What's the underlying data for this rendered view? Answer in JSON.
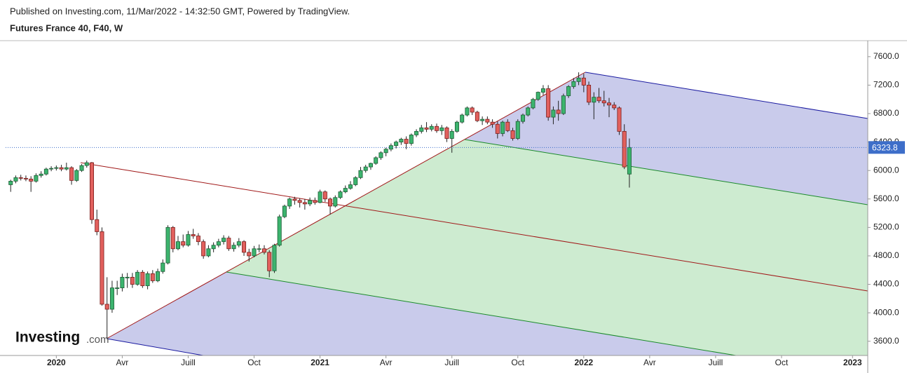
{
  "chart_data": {
    "type": "candlestick",
    "published": "Published on Investing.com, 11/Mar/2022 - 14:32:50 GMT, Powered by TradingView.",
    "title": "Futures France 40, F40, W",
    "logo": "Investing",
    "logo_suffix": ".com",
    "up_color": "#3cb46e",
    "down_color": "#e2605d",
    "last_price": 6323.8,
    "xlim": [
      -10,
      160
    ],
    "ylim": [
      3400,
      7825
    ],
    "xticks": [
      {
        "value": 0,
        "label": "2020"
      },
      {
        "value": 13,
        "label": "Avr"
      },
      {
        "value": 26,
        "label": "Juill"
      },
      {
        "value": 39,
        "label": "Oct"
      },
      {
        "value": 52,
        "label": "2021"
      },
      {
        "value": 65,
        "label": "Avr"
      },
      {
        "value": 78,
        "label": "Juill"
      },
      {
        "value": 91,
        "label": "Oct"
      },
      {
        "value": 104,
        "label": "2022"
      },
      {
        "value": 117,
        "label": "Avr"
      },
      {
        "value": 130,
        "label": "Juill"
      },
      {
        "value": 143,
        "label": "Oct"
      },
      {
        "value": 157,
        "label": "2023"
      }
    ],
    "yticks": [
      {
        "value": 3600,
        "label": "3600.0"
      },
      {
        "value": 4000,
        "label": "4000.0"
      },
      {
        "value": 4400,
        "label": "4400.0"
      },
      {
        "value": 4800,
        "label": "4800.0"
      },
      {
        "value": 5200,
        "label": "5200.0"
      },
      {
        "value": 5600,
        "label": "5600.0"
      },
      {
        "value": 6000,
        "label": "6000.0"
      },
      {
        "value": 6400,
        "label": "6400.0"
      },
      {
        "value": 6800,
        "label": "6800.0"
      },
      {
        "value": 7200,
        "label": "7200.0"
      },
      {
        "value": 7600,
        "label": "7600.0"
      }
    ],
    "x": [
      -9,
      -8,
      -7,
      -6,
      -5,
      -4,
      -3,
      -2,
      -1,
      0,
      1,
      2,
      3,
      4,
      5,
      6,
      7,
      8,
      9,
      10,
      11,
      12,
      13,
      14,
      15,
      16,
      17,
      18,
      19,
      20,
      21,
      22,
      23,
      24,
      25,
      26,
      27,
      28,
      29,
      30,
      31,
      32,
      33,
      34,
      35,
      36,
      37,
      38,
      39,
      40,
      41,
      42,
      43,
      44,
      45,
      46,
      47,
      48,
      49,
      50,
      51,
      52,
      53,
      54,
      55,
      56,
      57,
      58,
      59,
      60,
      61,
      62,
      63,
      64,
      65,
      66,
      67,
      68,
      69,
      70,
      71,
      72,
      73,
      74,
      75,
      76,
      77,
      78,
      79,
      80,
      81,
      82,
      83,
      84,
      85,
      86,
      87,
      88,
      89,
      90,
      91,
      92,
      93,
      94,
      95,
      96,
      97,
      98,
      99,
      100,
      101,
      102,
      103,
      104,
      105,
      106,
      107,
      108,
      109,
      110,
      111,
      112,
      113
    ],
    "ohlc": [
      [
        5800,
        5870,
        5700,
        5850
      ],
      [
        5850,
        5930,
        5820,
        5900
      ],
      [
        5900,
        5940,
        5860,
        5890
      ],
      [
        5890,
        5930,
        5850,
        5880
      ],
      [
        5880,
        5920,
        5700,
        5850
      ],
      [
        5850,
        5960,
        5830,
        5930
      ],
      [
        5930,
        5990,
        5900,
        5950
      ],
      [
        5950,
        6040,
        5930,
        6020
      ],
      [
        6020,
        6060,
        5990,
        6030
      ],
      [
        6030,
        6070,
        6000,
        6040
      ],
      [
        6040,
        6080,
        5990,
        6020
      ],
      [
        6020,
        6110,
        6000,
        6040
      ],
      [
        6040,
        6060,
        5800,
        5860
      ],
      [
        5860,
        6020,
        5840,
        6000
      ],
      [
        6000,
        6090,
        5980,
        6070
      ],
      [
        6070,
        6140,
        6040,
        6110
      ],
      [
        6110,
        6120,
        5250,
        5310
      ],
      [
        5310,
        5450,
        5090,
        5140
      ],
      [
        5140,
        5200,
        4100,
        4120
      ],
      [
        4120,
        4500,
        3630,
        4050
      ],
      [
        4050,
        4450,
        4000,
        4350
      ],
      [
        4350,
        4450,
        4250,
        4350
      ],
      [
        4350,
        4550,
        4300,
        4500
      ],
      [
        4500,
        4560,
        4350,
        4500
      ],
      [
        4500,
        4560,
        4350,
        4400
      ],
      [
        4400,
        4600,
        4380,
        4570
      ],
      [
        4570,
        4600,
        4350,
        4380
      ],
      [
        4380,
        4580,
        4330,
        4550
      ],
      [
        4550,
        4600,
        4420,
        4450
      ],
      [
        4450,
        4620,
        4430,
        4580
      ],
      [
        4580,
        4750,
        4550,
        4700
      ],
      [
        4700,
        5230,
        4680,
        5200
      ],
      [
        5200,
        5220,
        4850,
        4900
      ],
      [
        4900,
        5080,
        4880,
        5000
      ],
      [
        5000,
        5100,
        4920,
        4950
      ],
      [
        4950,
        5150,
        4930,
        5100
      ],
      [
        5100,
        5180,
        5040,
        5080
      ],
      [
        5080,
        5120,
        4950,
        5000
      ],
      [
        5000,
        5030,
        4760,
        4800
      ],
      [
        4800,
        4950,
        4780,
        4900
      ],
      [
        4900,
        4990,
        4850,
        4950
      ],
      [
        4950,
        5040,
        4920,
        5000
      ],
      [
        5000,
        5090,
        4960,
        5050
      ],
      [
        5050,
        5080,
        4870,
        4900
      ],
      [
        4900,
        4990,
        4860,
        4950
      ],
      [
        4950,
        5050,
        4920,
        5000
      ],
      [
        5000,
        5020,
        4800,
        4850
      ],
      [
        4850,
        4900,
        4720,
        4800
      ],
      [
        4800,
        4940,
        4780,
        4900
      ],
      [
        4900,
        4960,
        4850,
        4900
      ],
      [
        4900,
        4950,
        4820,
        4850
      ],
      [
        4850,
        4880,
        4500,
        4590
      ],
      [
        4590,
        4970,
        4560,
        4950
      ],
      [
        4950,
        5380,
        4930,
        5350
      ],
      [
        5350,
        5520,
        5330,
        5500
      ],
      [
        5500,
        5620,
        5460,
        5600
      ],
      [
        5600,
        5630,
        5520,
        5580
      ],
      [
        5580,
        5610,
        5480,
        5550
      ],
      [
        5550,
        5600,
        5450,
        5530
      ],
      [
        5530,
        5620,
        5500,
        5580
      ],
      [
        5580,
        5620,
        5520,
        5550
      ],
      [
        5550,
        5730,
        5540,
        5700
      ],
      [
        5700,
        5720,
        5560,
        5600
      ],
      [
        5600,
        5620,
        5380,
        5500
      ],
      [
        5500,
        5650,
        5480,
        5620
      ],
      [
        5620,
        5720,
        5600,
        5700
      ],
      [
        5700,
        5790,
        5680,
        5750
      ],
      [
        5750,
        5850,
        5730,
        5800
      ],
      [
        5800,
        5920,
        5780,
        5900
      ],
      [
        5900,
        6050,
        5880,
        6000
      ],
      [
        6000,
        6080,
        5970,
        6050
      ],
      [
        6050,
        6110,
        6010,
        6100
      ],
      [
        6100,
        6200,
        6080,
        6180
      ],
      [
        6180,
        6270,
        6150,
        6250
      ],
      [
        6250,
        6320,
        6200,
        6300
      ],
      [
        6300,
        6380,
        6270,
        6350
      ],
      [
        6350,
        6420,
        6310,
        6400
      ],
      [
        6400,
        6460,
        6360,
        6440
      ],
      [
        6440,
        6480,
        6300,
        6380
      ],
      [
        6380,
        6520,
        6350,
        6500
      ],
      [
        6500,
        6580,
        6470,
        6550
      ],
      [
        6550,
        6640,
        6520,
        6600
      ],
      [
        6600,
        6680,
        6540,
        6580
      ],
      [
        6580,
        6650,
        6550,
        6620
      ],
      [
        6620,
        6660,
        6530,
        6560
      ],
      [
        6560,
        6640,
        6500,
        6600
      ],
      [
        6600,
        6620,
        6400,
        6450
      ],
      [
        6450,
        6580,
        6250,
        6550
      ],
      [
        6550,
        6700,
        6530,
        6680
      ],
      [
        6680,
        6800,
        6660,
        6780
      ],
      [
        6780,
        6900,
        6760,
        6880
      ],
      [
        6880,
        6900,
        6780,
        6820
      ],
      [
        6820,
        6840,
        6680,
        6700
      ],
      [
        6700,
        6760,
        6640,
        6720
      ],
      [
        6720,
        6760,
        6650,
        6680
      ],
      [
        6680,
        6720,
        6600,
        6650
      ],
      [
        6650,
        6690,
        6450,
        6520
      ],
      [
        6520,
        6700,
        6480,
        6680
      ],
      [
        6680,
        6720,
        6540,
        6560
      ],
      [
        6560,
        6600,
        6420,
        6450
      ],
      [
        6450,
        6720,
        6430,
        6690
      ],
      [
        6690,
        6800,
        6660,
        6780
      ],
      [
        6780,
        6900,
        6760,
        6880
      ],
      [
        6880,
        7020,
        6860,
        7000
      ],
      [
        7000,
        7110,
        6980,
        7100
      ],
      [
        7100,
        7200,
        7060,
        7150
      ],
      [
        7150,
        7200,
        6700,
        6750
      ],
      [
        6750,
        6900,
        6650,
        6850
      ],
      [
        6850,
        6980,
        6700,
        6800
      ],
      [
        6800,
        7080,
        6780,
        7050
      ],
      [
        7050,
        7200,
        7020,
        7180
      ],
      [
        7180,
        7300,
        7150,
        7250
      ],
      [
        7250,
        7380,
        7200,
        7300
      ],
      [
        7300,
        7360,
        7100,
        7200
      ],
      [
        7200,
        7250,
        6920,
        6960
      ],
      [
        6960,
        7100,
        6720,
        7030
      ],
      [
        7030,
        7160,
        6950,
        6980
      ],
      [
        6980,
        7120,
        6900,
        6950
      ],
      [
        6950,
        7020,
        6750,
        6920
      ],
      [
        6920,
        6960,
        6850,
        6880
      ],
      [
        6880,
        6900,
        6500,
        6550
      ],
      [
        6550,
        6650,
        6020,
        6050
      ],
      [
        5950,
        6450,
        5760,
        6323.8
      ]
    ]
  }
}
